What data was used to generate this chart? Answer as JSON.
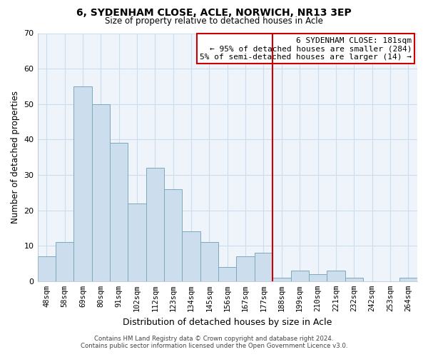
{
  "title": "6, SYDENHAM CLOSE, ACLE, NORWICH, NR13 3EP",
  "subtitle": "Size of property relative to detached houses in Acle",
  "xlabel": "Distribution of detached houses by size in Acle",
  "ylabel": "Number of detached properties",
  "categories": [
    "48sqm",
    "58sqm",
    "69sqm",
    "80sqm",
    "91sqm",
    "102sqm",
    "112sqm",
    "123sqm",
    "134sqm",
    "145sqm",
    "156sqm",
    "167sqm",
    "177sqm",
    "188sqm",
    "199sqm",
    "210sqm",
    "221sqm",
    "232sqm",
    "242sqm",
    "253sqm",
    "264sqm"
  ],
  "values": [
    7,
    11,
    55,
    50,
    39,
    22,
    32,
    26,
    14,
    11,
    4,
    7,
    8,
    1,
    3,
    2,
    3,
    1,
    0,
    0,
    1
  ],
  "bar_color": "#ccdded",
  "bar_edge_color": "#7aaabb",
  "grid_color": "#ccddee",
  "vline_color": "#cc0000",
  "annotation_title": "6 SYDENHAM CLOSE: 181sqm",
  "annotation_line1": "← 95% of detached houses are smaller (284)",
  "annotation_line2": "5% of semi-detached houses are larger (14) →",
  "ylim": [
    0,
    70
  ],
  "yticks": [
    0,
    10,
    20,
    30,
    40,
    50,
    60,
    70
  ],
  "footer1": "Contains HM Land Registry data © Crown copyright and database right 2024.",
  "footer2": "Contains public sector information licensed under the Open Government Licence v3.0.",
  "bg_color": "#ffffff",
  "plot_bg_color": "#eef4fa"
}
